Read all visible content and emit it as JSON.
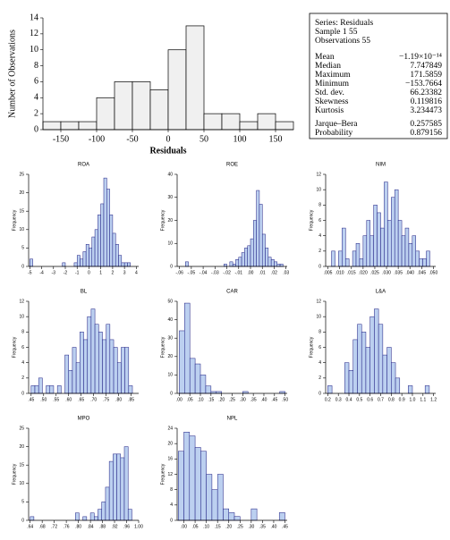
{
  "chart_data": [
    {
      "type": "histogram",
      "xlabel": "Residuals",
      "ylabel": "Number of Observations",
      "color": "#f0f0f0",
      "bins": [
        -175,
        -150,
        -125,
        -100,
        -75,
        -50,
        -25,
        0,
        25,
        50,
        75,
        100,
        125,
        150,
        175
      ],
      "counts": [
        1,
        1,
        1,
        4,
        6,
        6,
        5,
        10,
        13,
        2,
        2,
        1,
        2,
        1
      ],
      "xlim": [
        -175,
        175
      ],
      "ylim": [
        0,
        14
      ],
      "xticks": [
        -150,
        -100,
        -50,
        0,
        50,
        100,
        150
      ],
      "yticks": [
        0,
        2,
        4,
        6,
        8,
        10,
        12,
        14
      ],
      "stats": {
        "header": [
          "Series: Residuals",
          "Sample 1 55",
          "Observations 55"
        ],
        "rows": [
          [
            "Mean",
            "−1.19×10⁻¹⁴"
          ],
          [
            "Median",
            "7.747849"
          ],
          [
            "Maximum",
            "171.5859"
          ],
          [
            "Minimum",
            "−153.7664"
          ],
          [
            "Std. dev.",
            "66.23382"
          ],
          [
            "Skewness",
            "0.119816"
          ],
          [
            "Kurtosis",
            "3.234473"
          ]
        ],
        "tests": [
          [
            "Jarque–Bera",
            "0.257585"
          ],
          [
            "Probability",
            "0.879156"
          ]
        ]
      }
    },
    {
      "type": "histogram",
      "title": "ROA",
      "ylabel": "Frequency",
      "color": "#bcd0f0",
      "bins": [
        -5,
        -4.75,
        -4.5,
        -4.25,
        -4,
        -3.75,
        -3.5,
        -3.25,
        -3,
        -2.75,
        -2.5,
        -2.25,
        -2,
        -1.75,
        -1.5,
        -1.25,
        -1,
        -0.75,
        -0.5,
        -0.25,
        0,
        0.25,
        0.5,
        0.75,
        1,
        1.25,
        1.5,
        1.75,
        2,
        2.25,
        2.5,
        2.75,
        3,
        3.25,
        3.5
      ],
      "counts": [
        2,
        0,
        0,
        0,
        0,
        0,
        0,
        0,
        0,
        0,
        0,
        1,
        0,
        0,
        0,
        1,
        3,
        2,
        4,
        6,
        5,
        8,
        10,
        14,
        17,
        24,
        21,
        14,
        9,
        6,
        3,
        1,
        1,
        1
      ],
      "xlim": [
        -5.1,
        4.2
      ],
      "ylim": [
        0,
        25
      ],
      "xticks": [
        -5,
        -4,
        -3,
        -2,
        -1,
        0,
        1,
        2,
        3,
        4
      ],
      "yticks": [
        0,
        5,
        10,
        15,
        20,
        25
      ]
    },
    {
      "type": "histogram",
      "title": "ROE",
      "ylabel": "Frequency",
      "color": "#bcd0f0",
      "bins": [
        -0.06,
        -0.0575,
        -0.055,
        -0.0525,
        -0.05,
        -0.0475,
        -0.045,
        -0.0425,
        -0.04,
        -0.0375,
        -0.035,
        -0.0325,
        -0.03,
        -0.0275,
        -0.025,
        -0.0225,
        -0.02,
        -0.0175,
        -0.015,
        -0.0125,
        -0.01,
        -0.0075,
        -0.005,
        -0.0025,
        0,
        0.0025,
        0.005,
        0.0075,
        0.01,
        0.0125,
        0.015,
        0.0175,
        0.02,
        0.0225,
        0.025,
        0.0275,
        0.03
      ],
      "counts": [
        0,
        0,
        2,
        0,
        0,
        0,
        0,
        0,
        0,
        0,
        0,
        0,
        0,
        0,
        0,
        1,
        0,
        2,
        1,
        3,
        4,
        6,
        8,
        9,
        12,
        20,
        33,
        27,
        14,
        8,
        4,
        3,
        2,
        1,
        1,
        0
      ],
      "xlim": [
        -0.062,
        0.031
      ],
      "ylim": [
        0,
        40
      ],
      "xticks": [
        {
          "value": -0.06,
          "label": "-.06"
        },
        {
          "value": -0.05,
          "label": "-.05"
        },
        {
          "value": -0.04,
          "label": "-.04"
        },
        {
          "value": -0.03,
          "label": "-.03"
        },
        {
          "value": -0.02,
          "label": "-.02"
        },
        {
          "value": -0.01,
          "label": "-.01"
        },
        {
          "value": 0,
          "label": ".00"
        },
        {
          "value": 0.01,
          "label": ".01"
        },
        {
          "value": 0.02,
          "label": ".02"
        },
        {
          "value": 0.03,
          "label": ".03"
        }
      ],
      "yticks": [
        0,
        10,
        20,
        30,
        40
      ]
    },
    {
      "type": "histogram",
      "title": "NIM",
      "ylabel": "Frequency",
      "color": "#bcd0f0",
      "bins": [
        0.005,
        0.0065,
        0.008,
        0.0095,
        0.011,
        0.0125,
        0.014,
        0.0155,
        0.017,
        0.0185,
        0.02,
        0.0215,
        0.023,
        0.0245,
        0.026,
        0.0275,
        0.029,
        0.0305,
        0.032,
        0.0335,
        0.035,
        0.0365,
        0.038,
        0.0395,
        0.041,
        0.0425,
        0.044,
        0.0455,
        0.047,
        0.0485,
        0.05
      ],
      "counts": [
        0,
        2,
        0,
        2,
        5,
        1,
        0,
        2,
        3,
        1,
        4,
        6,
        4,
        8,
        7,
        5,
        11,
        6,
        9,
        10,
        6,
        4,
        5,
        3,
        4,
        2,
        1,
        1,
        2,
        0
      ],
      "xlim": [
        0.004,
        0.051
      ],
      "ylim": [
        0,
        12
      ],
      "xticks": [
        {
          "value": 0.005,
          "label": ".005"
        },
        {
          "value": 0.01,
          "label": ".010"
        },
        {
          "value": 0.015,
          "label": ".015"
        },
        {
          "value": 0.02,
          "label": ".020"
        },
        {
          "value": 0.025,
          "label": ".025"
        },
        {
          "value": 0.03,
          "label": ".030"
        },
        {
          "value": 0.035,
          "label": ".035"
        },
        {
          "value": 0.04,
          "label": ".040"
        },
        {
          "value": 0.045,
          "label": ".045"
        },
        {
          "value": 0.05,
          "label": ".050"
        }
      ],
      "yticks": [
        0,
        2,
        4,
        6,
        8,
        10,
        12
      ]
    },
    {
      "type": "histogram",
      "title": "BL",
      "ylabel": "Frequency",
      "color": "#bcd0f0",
      "bins": [
        0.45,
        0.465,
        0.48,
        0.495,
        0.51,
        0.525,
        0.54,
        0.555,
        0.57,
        0.585,
        0.6,
        0.615,
        0.63,
        0.645,
        0.66,
        0.675,
        0.69,
        0.705,
        0.72,
        0.735,
        0.75,
        0.765,
        0.78,
        0.795,
        0.81,
        0.825,
        0.84,
        0.855,
        0.87
      ],
      "counts": [
        1,
        1,
        2,
        0,
        1,
        1,
        0,
        1,
        0,
        5,
        3,
        6,
        4,
        8,
        7,
        10,
        11,
        9,
        8,
        7,
        9,
        7,
        6,
        4,
        6,
        6,
        1,
        0
      ],
      "xlim": [
        0.44,
        0.88
      ],
      "ylim": [
        0,
        12
      ],
      "xticks": [
        {
          "value": 0.45,
          "label": ".45"
        },
        {
          "value": 0.5,
          "label": ".50"
        },
        {
          "value": 0.55,
          "label": ".55"
        },
        {
          "value": 0.6,
          "label": ".60"
        },
        {
          "value": 0.65,
          "label": ".65"
        },
        {
          "value": 0.7,
          "label": ".70"
        },
        {
          "value": 0.75,
          "label": ".75"
        },
        {
          "value": 0.8,
          "label": ".80"
        },
        {
          "value": 0.85,
          "label": ".85"
        }
      ],
      "yticks": [
        0,
        2,
        4,
        6,
        8,
        10,
        12
      ]
    },
    {
      "type": "histogram",
      "title": "CAR",
      "ylabel": "Frequency",
      "color": "#bcd0f0",
      "bins": [
        0,
        0.025,
        0.05,
        0.075,
        0.1,
        0.125,
        0.15,
        0.175,
        0.2,
        0.225,
        0.25,
        0.275,
        0.3,
        0.325,
        0.35,
        0.375,
        0.4,
        0.425,
        0.45,
        0.475,
        0.5
      ],
      "counts": [
        34,
        49,
        19,
        16,
        10,
        4,
        1,
        1,
        0,
        0,
        0,
        0,
        1,
        0,
        0,
        0,
        0,
        0,
        0,
        1
      ],
      "xlim": [
        -0.01,
        0.51
      ],
      "ylim": [
        0,
        50
      ],
      "xticks": [
        {
          "value": 0,
          "label": ".00"
        },
        {
          "value": 0.05,
          "label": ".05"
        },
        {
          "value": 0.1,
          "label": ".10"
        },
        {
          "value": 0.15,
          "label": ".15"
        },
        {
          "value": 0.2,
          "label": ".20"
        },
        {
          "value": 0.25,
          "label": ".25"
        },
        {
          "value": 0.3,
          "label": ".30"
        },
        {
          "value": 0.35,
          "label": ".35"
        },
        {
          "value": 0.4,
          "label": ".40"
        },
        {
          "value": 0.45,
          "label": ".45"
        },
        {
          "value": 0.5,
          "label": ".50"
        }
      ],
      "yticks": [
        0,
        10,
        20,
        30,
        40,
        50
      ]
    },
    {
      "type": "histogram",
      "title": "L&A",
      "ylabel": "Frequency",
      "color": "#bcd0f0",
      "bins": [
        0.2,
        0.24,
        0.28,
        0.32,
        0.36,
        0.4,
        0.44,
        0.48,
        0.52,
        0.56,
        0.6,
        0.64,
        0.68,
        0.72,
        0.76,
        0.8,
        0.84,
        0.88,
        0.92,
        0.96,
        1,
        1.04,
        1.08,
        1.12,
        1.16,
        1.2
      ],
      "counts": [
        1,
        0,
        0,
        0,
        4,
        3,
        7,
        9,
        8,
        6,
        10,
        11,
        9,
        5,
        6,
        4,
        2,
        0,
        0,
        1,
        0,
        0,
        0,
        1,
        0
      ],
      "xlim": [
        0.18,
        1.22
      ],
      "ylim": [
        0,
        12
      ],
      "xticks": [
        0.2,
        0.3,
        0.4,
        0.5,
        0.6,
        0.7,
        0.8,
        0.9,
        {
          "value": 1,
          "label": "1.0"
        },
        1.1,
        1.2
      ],
      "yticks": [
        0,
        2,
        4,
        6,
        8,
        10,
        12
      ]
    },
    {
      "type": "histogram",
      "title": "MPO",
      "ylabel": "Frequency",
      "color": "#bcd0f0",
      "bins": [
        0.64,
        0.6525,
        0.665,
        0.6775,
        0.69,
        0.7025,
        0.715,
        0.7275,
        0.74,
        0.7525,
        0.765,
        0.7775,
        0.79,
        0.8025,
        0.815,
        0.8275,
        0.84,
        0.8525,
        0.865,
        0.8775,
        0.89,
        0.9025,
        0.915,
        0.9275,
        0.94,
        0.9525,
        0.965,
        0.9775,
        0.99
      ],
      "counts": [
        1,
        0,
        0,
        0,
        0,
        0,
        0,
        0,
        0,
        0,
        0,
        0,
        2,
        0,
        1,
        0,
        2,
        1,
        3,
        5,
        9,
        16,
        18,
        18,
        17,
        20,
        3,
        0
      ],
      "xlim": [
        0.635,
        1.0
      ],
      "ylim": [
        0,
        25
      ],
      "xticks": [
        {
          "value": 0.64,
          "label": ".64"
        },
        {
          "value": 0.68,
          "label": ".68"
        },
        {
          "value": 0.72,
          "label": ".72"
        },
        {
          "value": 0.76,
          "label": ".76"
        },
        {
          "value": 0.8,
          "label": ".80"
        },
        {
          "value": 0.84,
          "label": ".84"
        },
        {
          "value": 0.88,
          "label": ".88"
        },
        {
          "value": 0.92,
          "label": ".92"
        },
        {
          "value": 0.96,
          "label": ".96"
        },
        {
          "value": 1,
          "label": "1.00"
        }
      ],
      "yticks": [
        0,
        5,
        10,
        15,
        20,
        25
      ]
    },
    {
      "type": "histogram",
      "title": "NPL",
      "ylabel": "Frequency",
      "color": "#bcd0f0",
      "bins": [
        -0.025,
        0,
        0.025,
        0.05,
        0.075,
        0.1,
        0.125,
        0.15,
        0.175,
        0.2,
        0.225,
        0.25,
        0.275,
        0.3,
        0.325,
        0.35,
        0.375,
        0.4,
        0.425,
        0.45
      ],
      "counts": [
        18,
        23,
        22,
        19,
        18,
        12,
        8,
        12,
        3,
        2,
        1,
        0,
        0,
        3,
        0,
        0,
        0,
        0,
        2
      ],
      "xlim": [
        -0.03,
        0.46
      ],
      "ylim": [
        0,
        24
      ],
      "xticks": [
        {
          "value": 0,
          "label": ".00"
        },
        {
          "value": 0.05,
          "label": ".05"
        },
        {
          "value": 0.1,
          "label": ".10"
        },
        {
          "value": 0.15,
          "label": ".15"
        },
        {
          "value": 0.2,
          "label": ".20"
        },
        {
          "value": 0.25,
          "label": ".25"
        },
        {
          "value": 0.3,
          "label": ".30"
        },
        {
          "value": 0.35,
          "label": ".35"
        },
        {
          "value": 0.4,
          "label": ".40"
        },
        {
          "value": 0.45,
          "label": ".45"
        }
      ],
      "yticks": [
        0,
        4,
        8,
        12,
        16,
        20,
        24
      ]
    }
  ]
}
